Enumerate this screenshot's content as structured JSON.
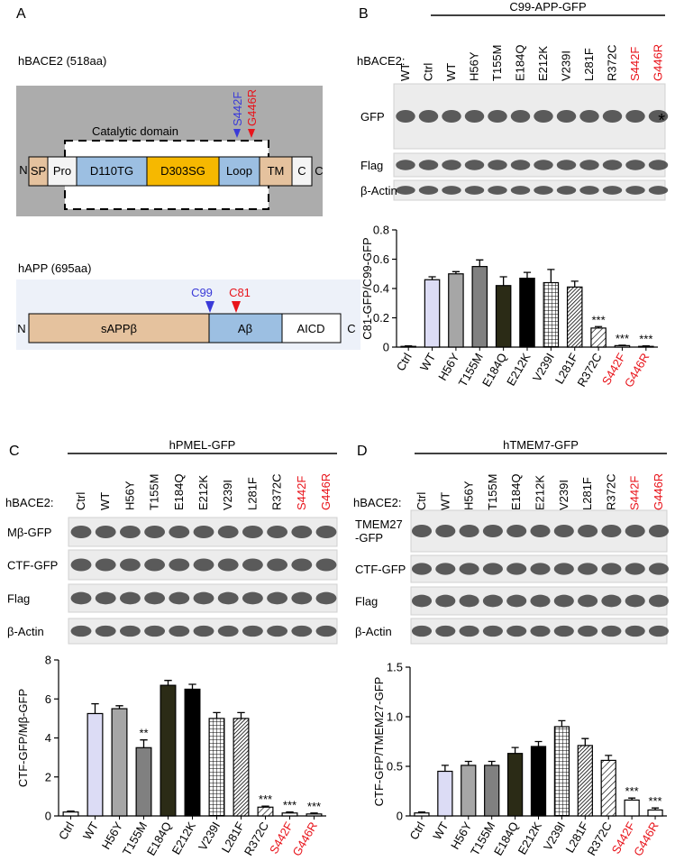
{
  "panel_labels": [
    "A",
    "B",
    "C",
    "D"
  ],
  "diagram": {
    "bace2_title": "hBACE2 (518aa)",
    "catalytic_label": "Catalytic domain",
    "bace2_domains": [
      "N",
      "SP",
      "Pro",
      "D110TG",
      "D303SG",
      "Loop",
      "TM",
      "C",
      "C"
    ],
    "mutations": [
      "S442F",
      "G446R"
    ],
    "app_title": "hAPP (695aa)",
    "app_domains": [
      "N",
      "sAPPβ",
      "Aβ",
      "AICD",
      "C"
    ],
    "app_sites": [
      "C99",
      "C81"
    ]
  },
  "blots": [
    {
      "construct": "C99-APP-GFP",
      "row_label": "hBACE2:",
      "lanes": [
        "WT",
        "Ctrl",
        "WT",
        "H56Y",
        "T155M",
        "E184Q",
        "E212K",
        "V239I",
        "L281F",
        "R372C",
        "S442F",
        "G446R"
      ],
      "lane_colors": [
        "#000000",
        "#000000",
        "#000000",
        "#000000",
        "#000000",
        "#000000",
        "#000000",
        "#000000",
        "#000000",
        "#000000",
        "#e8141b",
        "#e8141b"
      ],
      "bands": [
        "GFP",
        "Flag",
        "β-Actin"
      ],
      "marker": "*"
    },
    {
      "construct": "hPMEL-GFP",
      "row_label": "hBACE2:",
      "lanes": [
        "Ctrl",
        "WT",
        "H56Y",
        "T155M",
        "E184Q",
        "E212K",
        "V239I",
        "L281F",
        "R372C",
        "S442F",
        "G446R"
      ],
      "lane_colors": [
        "#000000",
        "#000000",
        "#000000",
        "#000000",
        "#000000",
        "#000000",
        "#000000",
        "#000000",
        "#000000",
        "#e8141b",
        "#e8141b"
      ],
      "bands": [
        "Mβ-GFP",
        "CTF-GFP",
        "Flag",
        "β-Actin"
      ]
    },
    {
      "construct": "hTMEM7-GFP",
      "row_label": "hBACE2:",
      "lanes": [
        "Ctrl",
        "WT",
        "H56Y",
        "T155M",
        "E184Q",
        "E212K",
        "V239I",
        "L281F",
        "R372C",
        "S442F",
        "G446R"
      ],
      "lane_colors": [
        "#000000",
        "#000000",
        "#000000",
        "#000000",
        "#000000",
        "#000000",
        "#000000",
        "#000000",
        "#000000",
        "#e8141b",
        "#e8141b"
      ],
      "bands": [
        [
          "TMEM27",
          "-GFP"
        ],
        "CTF-GFP",
        "Flag",
        "β-Actin"
      ]
    }
  ],
  "chart_data": [
    {
      "type": "bar",
      "ylabel": "C81-GFP/C99-GFP",
      "categories": [
        "Ctrl",
        "WT",
        "H56Y",
        "T155M",
        "E184Q",
        "E212K",
        "V239I",
        "L281F",
        "R372C",
        "S442F",
        "G446R"
      ],
      "category_colors": [
        "#000000",
        "#000000",
        "#000000",
        "#000000",
        "#000000",
        "#000000",
        "#000000",
        "#000000",
        "#000000",
        "#e8141b",
        "#e8141b"
      ],
      "values": [
        0.005,
        0.46,
        0.5,
        0.55,
        0.42,
        0.47,
        0.44,
        0.41,
        0.13,
        0.01,
        0.005
      ],
      "errors": [
        0.003,
        0.02,
        0.015,
        0.045,
        0.06,
        0.04,
        0.09,
        0.04,
        0.01,
        0.003,
        0.003
      ],
      "annotations": [
        null,
        null,
        null,
        null,
        null,
        null,
        null,
        null,
        "***",
        "***",
        "***"
      ],
      "fills": [
        "#ffffff",
        "#dcdcf5",
        "#a6a6a6",
        "#808080",
        "#2b2b16",
        "#000000",
        "grid",
        "dense",
        "hatch",
        "#ffffff",
        "#ffffff"
      ],
      "ylim": [
        0,
        0.8
      ],
      "yticks": [
        0,
        0.2,
        0.4,
        0.6,
        0.8
      ]
    },
    {
      "type": "bar",
      "ylabel": "CTF-GFP/Mβ-GFP",
      "categories": [
        "Ctrl",
        "WT",
        "H56Y",
        "T155M",
        "E184Q",
        "E212K",
        "V239I",
        "L281F",
        "R372C",
        "S442F",
        "G446R"
      ],
      "category_colors": [
        "#000000",
        "#000000",
        "#000000",
        "#000000",
        "#000000",
        "#000000",
        "#000000",
        "#000000",
        "#000000",
        "#e8141b",
        "#e8141b"
      ],
      "values": [
        0.2,
        5.25,
        5.5,
        3.5,
        6.7,
        6.5,
        5.0,
        5.0,
        0.45,
        0.15,
        0.1
      ],
      "errors": [
        0.05,
        0.5,
        0.15,
        0.4,
        0.25,
        0.25,
        0.3,
        0.3,
        0.05,
        0.05,
        0.05
      ],
      "annotations": [
        null,
        null,
        null,
        "**",
        null,
        null,
        null,
        null,
        "***",
        "***",
        "***"
      ],
      "fills": [
        "#ffffff",
        "#dcdcf5",
        "#a6a6a6",
        "#808080",
        "#2b2b16",
        "#000000",
        "grid",
        "dense",
        "hatch",
        "#ffffff",
        "#ffffff"
      ],
      "ylim": [
        0,
        8
      ],
      "yticks": [
        0,
        2,
        4,
        6,
        8
      ]
    },
    {
      "type": "bar",
      "ylabel": "CTF-GFP/TMEM27-GFP",
      "categories": [
        "Ctrl",
        "WT",
        "H56Y",
        "T155M",
        "E184Q",
        "E212K",
        "V239I",
        "L281F",
        "R372C",
        "S442F",
        "G446R"
      ],
      "category_colors": [
        "#000000",
        "#000000",
        "#000000",
        "#000000",
        "#000000",
        "#000000",
        "#000000",
        "#000000",
        "#000000",
        "#e8141b",
        "#e8141b"
      ],
      "values": [
        0.03,
        0.45,
        0.51,
        0.51,
        0.63,
        0.7,
        0.9,
        0.71,
        0.56,
        0.16,
        0.06
      ],
      "errors": [
        0.01,
        0.06,
        0.04,
        0.04,
        0.06,
        0.05,
        0.06,
        0.07,
        0.05,
        0.02,
        0.02
      ],
      "annotations": [
        null,
        null,
        null,
        null,
        null,
        null,
        null,
        null,
        null,
        "***",
        "***"
      ],
      "fills": [
        "#ffffff",
        "#dcdcf5",
        "#a6a6a6",
        "#808080",
        "#2b2b16",
        "#000000",
        "grid",
        "dense",
        "hatch",
        "#ffffff",
        "#ffffff"
      ],
      "ylim": [
        0,
        1.5
      ],
      "yticks": [
        0,
        0.5,
        {
          "value": 1,
          "label": "1.0"
        },
        1.5
      ]
    }
  ]
}
